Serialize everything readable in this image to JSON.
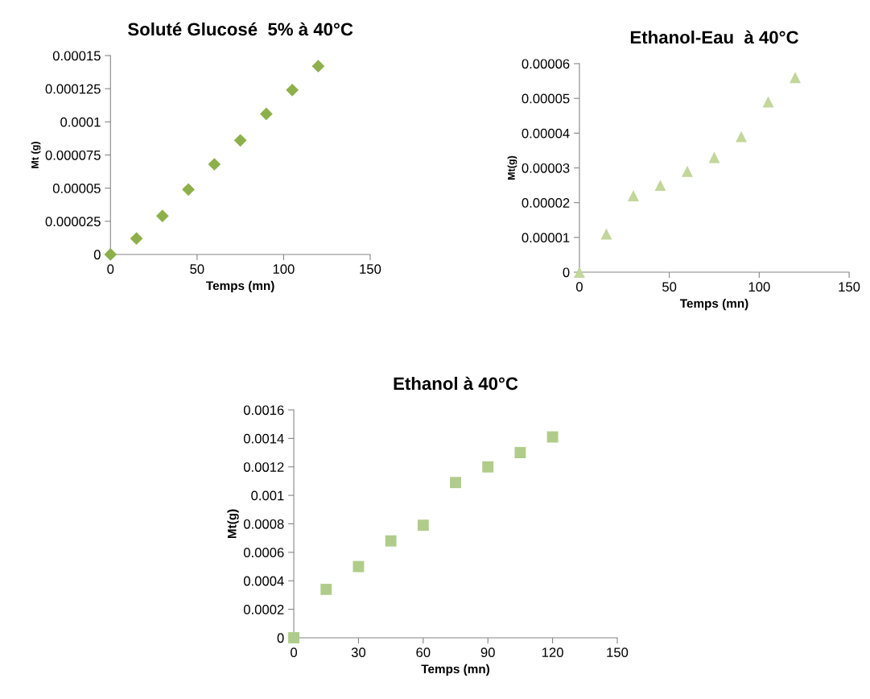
{
  "chart_data": [
    {
      "type": "scatter",
      "title": "Soluté Glucosé  5% à 40°C",
      "xlabel": "Temps (mn)",
      "ylabel": "Mt (g)",
      "marker": "diamond",
      "grid": false,
      "legend": false,
      "x": [
        0,
        15,
        30,
        45,
        60,
        75,
        90,
        105,
        120
      ],
      "series": [
        {
          "color": "#8db04b",
          "values": [
            0,
            1.2e-05,
            2.9e-05,
            4.9e-05,
            6.8e-05,
            8.6e-05,
            0.000106,
            0.000124,
            0.000142
          ]
        }
      ],
      "xlim": [
        0,
        150
      ],
      "xticks": [
        0,
        50,
        100,
        150
      ],
      "ylim": [
        0,
        0.00015
      ],
      "yticks": [
        {
          "value": 0,
          "label": "0"
        },
        {
          "value": 2.5e-05,
          "label": "0.000025"
        },
        {
          "value": 5e-05,
          "label": "0.00005"
        },
        {
          "value": 7.5e-05,
          "label": "0.000075"
        },
        {
          "value": 0.0001,
          "label": "0.0001"
        },
        {
          "value": 0.000125,
          "label": "0.000125"
        },
        {
          "value": 0.00015,
          "label": "0.00015"
        }
      ]
    },
    {
      "type": "scatter",
      "title": "Ethanol-Eau  à 40°C",
      "xlabel": "Temps (mn)",
      "ylabel": "Mt(g)",
      "marker": "triangle",
      "grid": false,
      "legend": false,
      "x": [
        0,
        15,
        30,
        45,
        60,
        75,
        90,
        105,
        120
      ],
      "series": [
        {
          "color": "#c3d69b",
          "values": [
            0,
            1.1e-05,
            2.2e-05,
            2.5e-05,
            2.9e-05,
            3.3e-05,
            3.9e-05,
            4.9e-05,
            5.6e-05
          ]
        }
      ],
      "xlim": [
        0,
        150
      ],
      "xticks": [
        0,
        50,
        100,
        150
      ],
      "ylim": [
        0,
        6e-05
      ],
      "yticks": [
        {
          "value": 0,
          "label": "0"
        },
        {
          "value": 1e-05,
          "label": "0.00001"
        },
        {
          "value": 2e-05,
          "label": "0.00002"
        },
        {
          "value": 3e-05,
          "label": "0.00003"
        },
        {
          "value": 4e-05,
          "label": "0.00004"
        },
        {
          "value": 5e-05,
          "label": "0.00005"
        },
        {
          "value": 6e-05,
          "label": "0.00006"
        }
      ]
    },
    {
      "type": "scatter",
      "title": "Ethanol à 40°C",
      "xlabel": "Temps (mn)",
      "ylabel": "Mt(g)",
      "marker": "square",
      "grid": false,
      "legend": false,
      "x": [
        0,
        15,
        30,
        45,
        60,
        75,
        90,
        105,
        120
      ],
      "series": [
        {
          "color": "#b0cc8a",
          "values": [
            0,
            0.00034,
            0.0005,
            0.00068,
            0.00079,
            0.00109,
            0.0012,
            0.0013,
            0.00141
          ]
        }
      ],
      "xlim": [
        0,
        150
      ],
      "xticks": [
        0,
        30,
        60,
        90,
        120,
        150
      ],
      "ylim": [
        0,
        0.0016
      ],
      "yticks": [
        0,
        0.0002,
        0.0004,
        0.0006,
        0.0008,
        0.001,
        0.0012,
        0.0014,
        0.0016
      ]
    }
  ]
}
